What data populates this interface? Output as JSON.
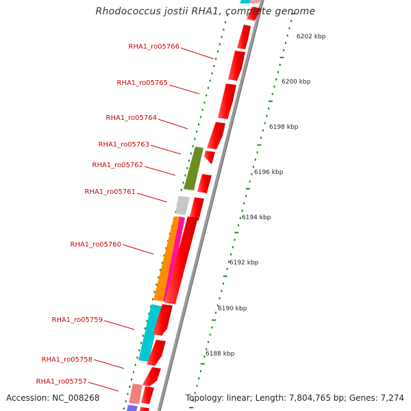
{
  "title": "Rhodococcus jostii RHA1, complete genome",
  "accession": "Accession: NC_008268",
  "topology": "Topology: linear; Length: 7,804,765 bp; Genes: 7,274",
  "colors": {
    "forward_gene": "#ff0000",
    "label_red": "#cc0000",
    "tick_green": "#1a8a1a",
    "backbone": "#9a9a9a",
    "olive": "#6b8e23",
    "gray_gene": "#c8c8c8",
    "orange_gene": "#ff8c00",
    "magenta_gene": "#ff1493",
    "cyan_gene": "#00c8d2",
    "pink_gene": "#f08080",
    "purple_gene": "#7b68ee"
  },
  "kbp_labels": [
    "6202 kbp",
    "6200 kbp",
    "6198 kbp",
    "6196 kbp",
    "6194 kbp",
    "6192 kbp",
    "6190 kbp",
    "6188 kbp"
  ],
  "genes": [
    {
      "label": "RHA1_ro05766"
    },
    {
      "label": "RHA1_ro05765"
    },
    {
      "label": "RHA1_ro05764"
    },
    {
      "label": "RHA1_ro05763"
    },
    {
      "label": "RHA1_ro05762"
    },
    {
      "label": "RHA1_ro05761"
    },
    {
      "label": "RHA1_ro05760"
    },
    {
      "label": "RHA1_ro05759"
    },
    {
      "label": "RHA1_ro05758"
    },
    {
      "label": "RHA1_ro05757"
    }
  ]
}
